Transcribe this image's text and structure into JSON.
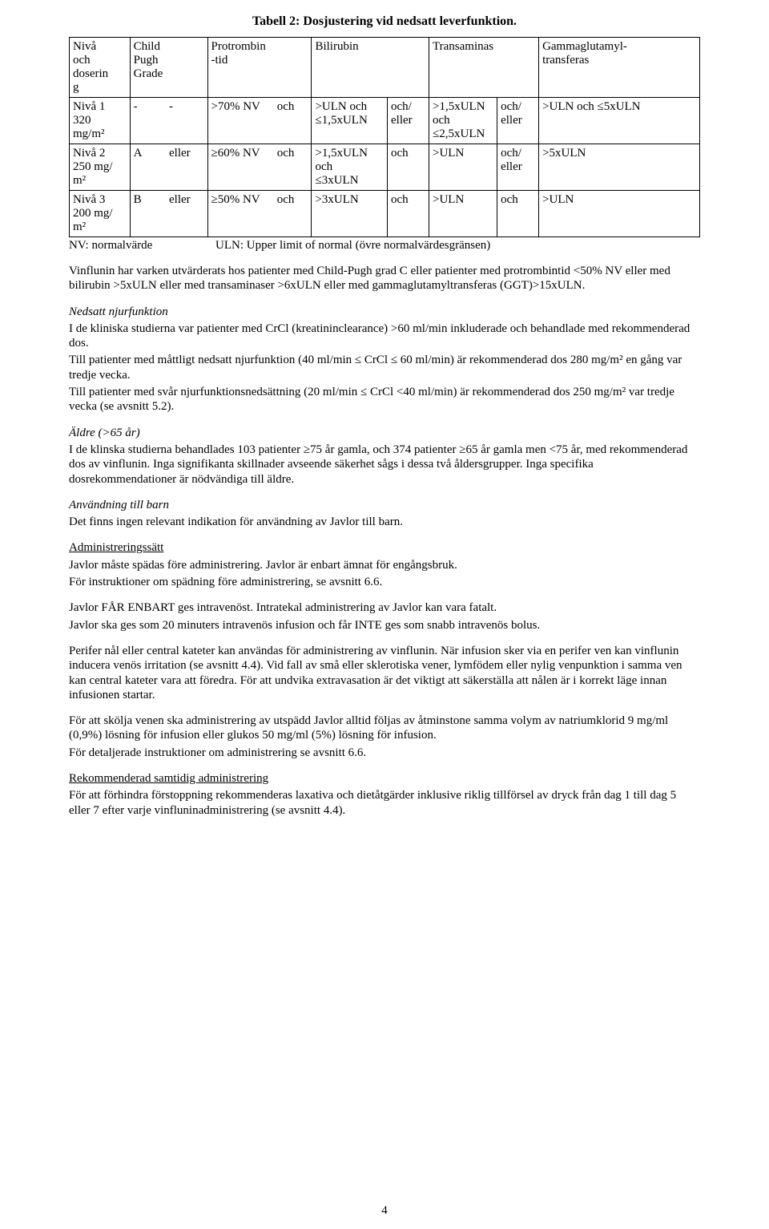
{
  "title": "Tabell 2: Dosjustering vid nedsatt leverfunktion.",
  "table": {
    "head": {
      "dose": "Nivå\noch\ndoserin\ng",
      "cpg": "Child\nPugh\nGrade",
      "pt": "Protrombin\n-tid",
      "bili": "Bilirubin",
      "trans": "Transaminas",
      "ggt": "Gammaglutamyl-\ntransferas"
    },
    "rows": [
      {
        "dose": "Nivå 1\n320\nmg/m²",
        "cpgA": "-",
        "cpgB": "-",
        "ptA": ">70% NV",
        "ptB": "och",
        "bili": ">ULN och\n≤1,5xULN",
        "biliOr": "och/\neller",
        "trans": ">1,5xULN\noch\n≤2,5xULN",
        "transOr": "och/\neller",
        "ggt": ">ULN och ≤5xULN"
      },
      {
        "dose": "Nivå 2\n250 mg/\nm²",
        "cpgA": "A",
        "cpgB": "eller",
        "ptA": "≥60% NV",
        "ptB": "och",
        "bili": ">1,5xULN\noch\n≤3xULN",
        "biliOr": "och",
        "trans": ">ULN",
        "transOr": "och/\neller",
        "ggt": ">5xULN"
      },
      {
        "dose": "Nivå 3\n200 mg/\nm²",
        "cpgA": "B",
        "cpgB": "eller",
        "ptA": "≥50% NV",
        "ptB": "och",
        "bili": ">3xULN",
        "biliOr": "och",
        "trans": ">ULN",
        "transOr": "och",
        "ggt": ">ULN"
      }
    ],
    "note": "NV: normalvärde                     ULN: Upper limit of normal (övre normalvärdesgränsen)"
  },
  "p_vinflunin": "Vinflunin har varken utvärderats hos patienter med Child-Pugh grad C eller patienter med protrombintid <50% NV eller med bilirubin >5xULN eller med transaminaser >6xULN eller med gammaglutamyltransferas (GGT)>15xULN.",
  "h_renal": "Nedsatt njurfunktion",
  "p_renal1": "I de kliniska studierna var patienter med CrCl (kreatininclearance) >60 ml/min inkluderade och behandlade med rekommenderad dos.",
  "p_renal2": "Till patienter med måttligt nedsatt njurfunktion (40 ml/min ≤ CrCl ≤ 60 ml/min) är rekommenderad dos 280 mg/m² en gång var tredje vecka.",
  "p_renal3": "Till patienter med svår njurfunktionsnedsättning (20 ml/min ≤ CrCl <40 ml/min) är rekommenderad dos 250 mg/m² var tredje vecka (se avsnitt 5.2).",
  "h_elderly": "Äldre (>65 år)",
  "p_elderly": "I de klinska studierna behandlades 103 patienter ≥75 år gamla, och 374 patienter ≥65 år gamla men <75 år, med rekommenderad dos av vinflunin. Inga signifikanta skillnader avseende säkerhet sågs i dessa två åldersgrupper. Inga specifika dosrekommendationer är nödvändiga till äldre.",
  "h_children": "Användning till barn",
  "p_children": "Det finns ingen relevant indikation för användning av Javlor till barn.",
  "h_admin": "Administreringssätt",
  "p_admin1": "Javlor måste spädas före administrering. Javlor är enbart ämnat för engångsbruk.",
  "p_admin2": "För instruktioner om spädning före administrering, se avsnitt 6.6.",
  "p_iv1": "Javlor FÅR ENBART ges intravenöst. Intratekal administrering av Javlor kan vara fatalt.",
  "p_iv2": "Javlor ska ges som 20 minuters intravenös infusion och får INTE ges som snabb intravenös bolus.",
  "p_periph": "Perifer nål eller central kateter kan användas för administrering av vinflunin. När infusion sker via en perifer ven kan vinflunin inducera venös irritation (se avsnitt 4.4). Vid fall av små eller sklerotiska vener, lymfödem eller nylig venpunktion i samma ven kan central kateter vara att föredra. För att undvika extravasation är det viktigt att säkerställa att nålen är i korrekt läge innan infusionen startar.",
  "p_flush1": "För att skölja venen ska administrering av utspädd Javlor alltid följas av åtminstone samma volym av natriumklorid 9 mg/ml (0,9%) lösning för infusion eller glukos 50 mg/ml (5%) lösning för infusion.",
  "p_flush2": "För detaljerade instruktioner om administrering se avsnitt 6.6.",
  "h_concomitant": "Rekommenderad samtidig administrering",
  "p_concomitant": "För att förhindra förstoppning rekommenderas laxativa och dietåtgärder inklusive riklig tillförsel av dryck från dag 1 till dag 5 eller 7 efter varje vinfluninadministrering (se avsnitt 4.4).",
  "page_number": "4"
}
